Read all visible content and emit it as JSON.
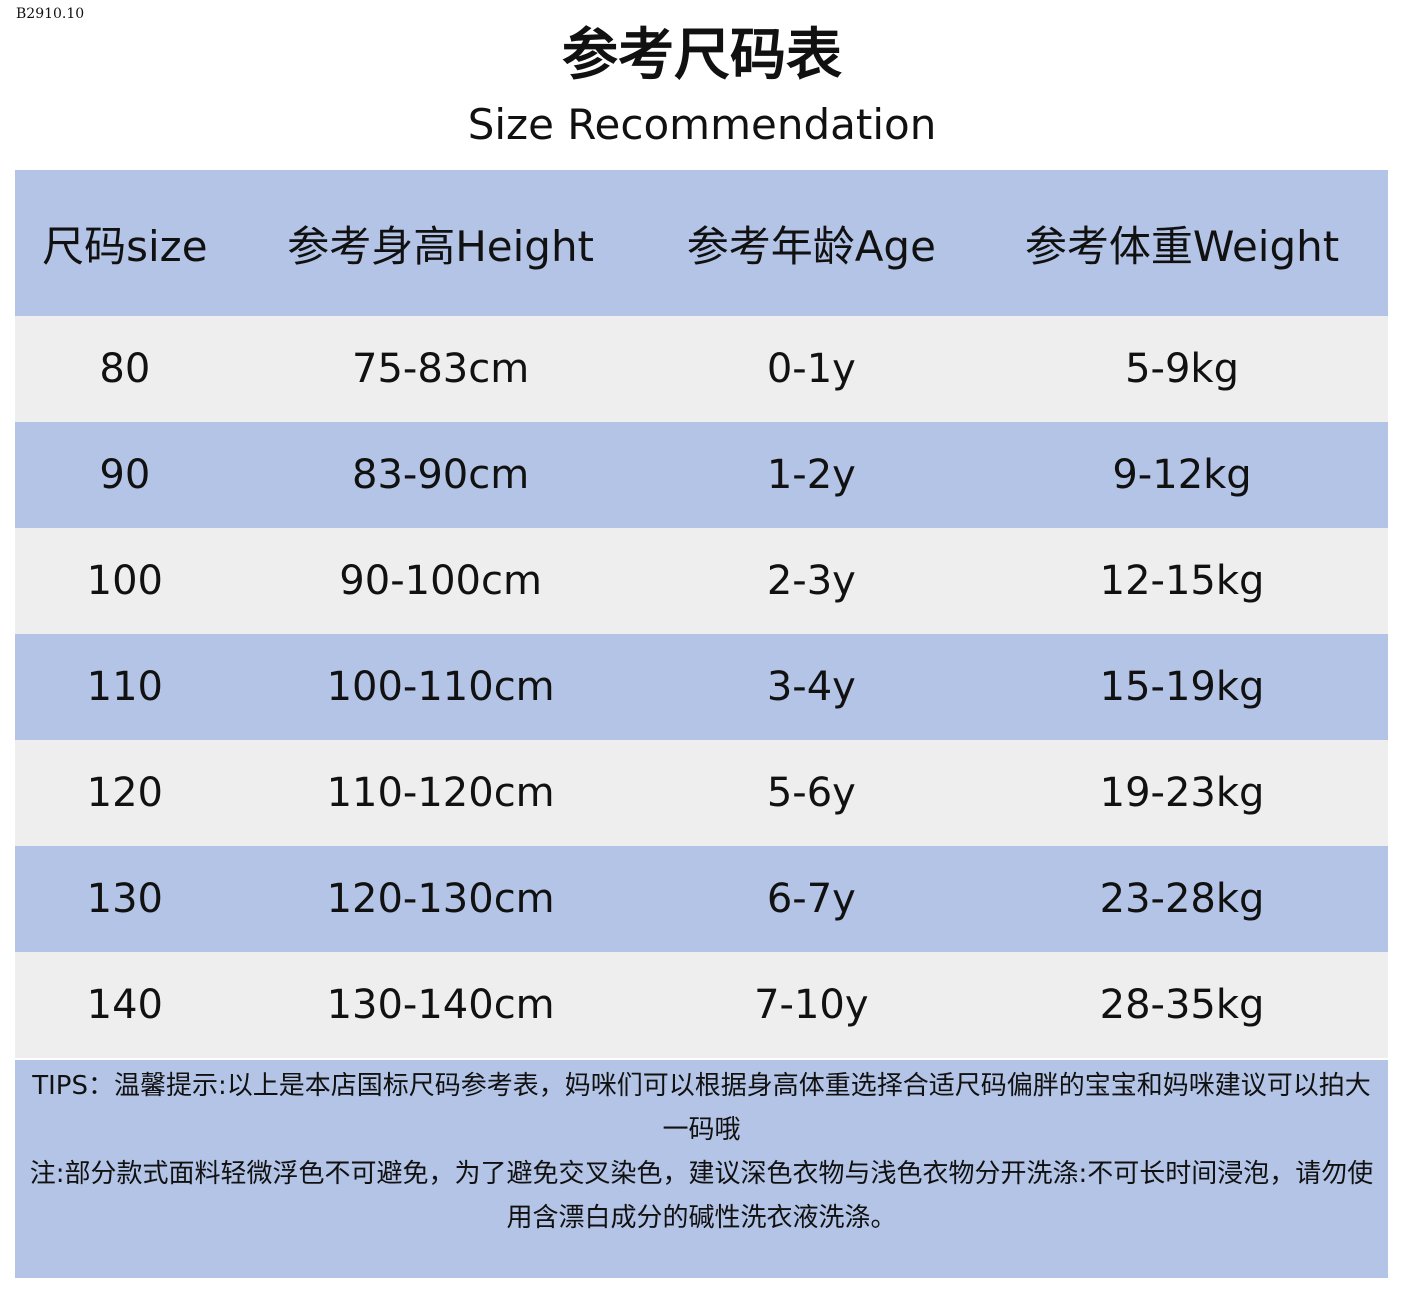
{
  "code": "B2910.10",
  "header": {
    "title": "参考尺码表",
    "subtitle": "Size Recommendation"
  },
  "table": {
    "columns": [
      "尺码size",
      "参考身高Height",
      "参考年龄Age",
      "参考体重Weight"
    ],
    "rows": [
      [
        "80",
        "75-83cm",
        "0-1y",
        "5-9kg"
      ],
      [
        "90",
        "83-90cm",
        "1-2y",
        "9-12kg"
      ],
      [
        "100",
        "90-100cm",
        "2-3y",
        "12-15kg"
      ],
      [
        "110",
        "100-110cm",
        "3-4y",
        "15-19kg"
      ],
      [
        "120",
        "110-120cm",
        "5-6y",
        "19-23kg"
      ],
      [
        "130",
        "120-130cm",
        "6-7y",
        "23-28kg"
      ],
      [
        "140",
        "130-140cm",
        "7-10y",
        "28-35kg"
      ]
    ]
  },
  "notes": [
    "TIPS：温馨提示:以上是本店国标尺码参考表，妈咪们可以根据身高体重选择合适尺码偏胖的宝宝和妈咪建议可以拍大一码哦",
    "注:部分款式面料轻微浮色不可避免，为了避免交叉染色，建议深色衣物与浅色衣物分开洗涤:不可长时间浸泡，请勿使用含漂白成分的碱性洗衣液洗涤。"
  ]
}
